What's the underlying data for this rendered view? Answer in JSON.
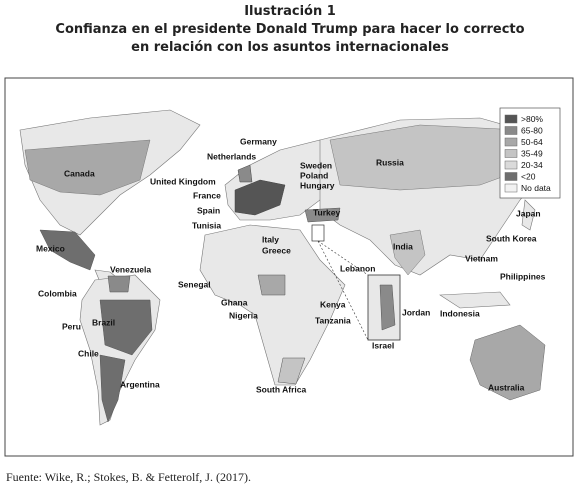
{
  "title": {
    "label": "Ilustración 1",
    "line1": "Confianza en el presidente Donald Trump para hacer lo correcto",
    "line2": "en relación con los asuntos internacionales"
  },
  "legend": {
    "items": [
      {
        "label": ">80%",
        "color": "#555555"
      },
      {
        "label": "65-80",
        "color": "#8a8a8a"
      },
      {
        "label": "50-64",
        "color": "#a8a8a8"
      },
      {
        "label": "35-49",
        "color": "#c4c4c4"
      },
      {
        "label": "20-34",
        "color": "#dadada"
      },
      {
        "label": "<20",
        "color": "#6e6e6e"
      },
      {
        "label": "No data",
        "color": "#f2f2f2"
      }
    ]
  },
  "countries": [
    "Canada",
    "Germany",
    "Netherlands",
    "United Kingdom",
    "France",
    "Spain",
    "Tunisia",
    "Italy",
    "Greece",
    "Turkey",
    "Sweden",
    "Poland",
    "Hungary",
    "Russia",
    "Japan",
    "South Korea",
    "Vietnam",
    "Philippines",
    "Indonesia",
    "Australia",
    "India",
    "Lebanon",
    "Jordan",
    "Israel",
    "Kenya",
    "Tanzania",
    "Ghana",
    "Nigeria",
    "Senegal",
    "South Africa",
    "Mexico",
    "Venezuela",
    "Colombia",
    "Brazil",
    "Peru",
    "Chile",
    "Argentina"
  ],
  "source": "Fuente: Wike, R.; Stokes, B. & Fetterolf, J. (2017)."
}
